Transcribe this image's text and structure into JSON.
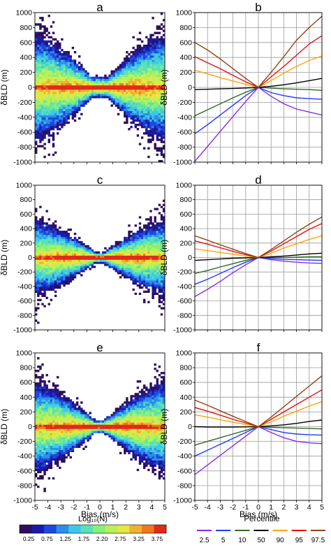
{
  "panel_letters": [
    "a",
    "b",
    "c",
    "d",
    "e",
    "f"
  ],
  "chart_data": [
    {
      "type": "heatmap",
      "panel": "a",
      "xlabel": "",
      "ylabel": "δBLD (m)",
      "xlim": [
        -5,
        5
      ],
      "ylim": [
        -1000,
        1000
      ],
      "x_ticks": [],
      "y_ticks": [
        1000,
        800,
        600,
        400,
        200,
        0,
        -200,
        -400,
        -600,
        -800,
        -1000
      ],
      "spread_at_edge": 900,
      "center_width": 0.6
    },
    {
      "type": "line",
      "panel": "b",
      "xlabel": "",
      "ylabel": "δBLD (m)",
      "xlim": [
        -5,
        5
      ],
      "ylim": [
        -1000,
        1000
      ],
      "grid": true,
      "x_ticks": [],
      "y_ticks": [
        1000,
        800,
        600,
        400,
        200,
        0,
        -200,
        -400,
        -600,
        -800,
        -1000
      ],
      "x": [
        -5,
        -4,
        -3,
        -2,
        -1,
        0,
        1,
        2,
        3,
        4,
        5
      ],
      "series": [
        {
          "color": "#8a2be2",
          "values": [
            -990,
            -790,
            -590,
            -390,
            -190,
            0,
            -120,
            -220,
            -290,
            -330,
            -370
          ]
        },
        {
          "color": "#1e3cff",
          "values": [
            -620,
            -500,
            -370,
            -240,
            -110,
            0,
            -70,
            -110,
            -140,
            -150,
            -160
          ]
        },
        {
          "color": "#2e6b1e",
          "values": [
            -380,
            -300,
            -220,
            -140,
            -65,
            0,
            -10,
            -20,
            -25,
            -30,
            -40
          ]
        },
        {
          "color": "#000000",
          "values": [
            -30,
            -25,
            -20,
            -15,
            -8,
            0,
            15,
            35,
            60,
            90,
            120
          ]
        },
        {
          "color": "#ffa500",
          "values": [
            230,
            180,
            130,
            85,
            40,
            0,
            90,
            190,
            280,
            360,
            420
          ]
        },
        {
          "color": "#e01010",
          "values": [
            410,
            330,
            250,
            160,
            75,
            0,
            140,
            280,
            430,
            580,
            690
          ]
        },
        {
          "color": "#8b4513",
          "values": [
            600,
            500,
            380,
            250,
            120,
            0,
            200,
            410,
            630,
            800,
            950
          ]
        }
      ]
    },
    {
      "type": "heatmap",
      "panel": "c",
      "xlabel": "",
      "ylabel": "δBLD (m)",
      "xlim": [
        -5,
        5
      ],
      "ylim": [
        -1000,
        1000
      ],
      "x_ticks": [],
      "y_ticks": [
        1000,
        800,
        600,
        400,
        200,
        0,
        -200,
        -400,
        -600,
        -800,
        -1000
      ],
      "spread_at_edge": 640,
      "center_width": 0.3
    },
    {
      "type": "line",
      "panel": "d",
      "xlabel": "",
      "ylabel": "δBLD (m)",
      "xlim": [
        -5,
        5
      ],
      "ylim": [
        -1000,
        1000
      ],
      "grid": true,
      "x_ticks": [],
      "y_ticks": [
        1000,
        800,
        600,
        400,
        200,
        0,
        -200,
        -400,
        -600,
        -800,
        -1000
      ],
      "x": [
        -5,
        -4,
        -3,
        -2,
        -1,
        0,
        1,
        2,
        3,
        4,
        5
      ],
      "series": [
        {
          "color": "#8a2be2",
          "values": [
            -540,
            -440,
            -330,
            -210,
            -100,
            0,
            -30,
            -50,
            -65,
            -75,
            -80
          ]
        },
        {
          "color": "#1e3cff",
          "values": [
            -370,
            -300,
            -220,
            -140,
            -65,
            0,
            -15,
            -25,
            -30,
            -35,
            -40
          ]
        },
        {
          "color": "#2e6b1e",
          "values": [
            -220,
            -180,
            -130,
            -85,
            -40,
            0,
            0,
            0,
            5,
            10,
            10
          ]
        },
        {
          "color": "#000000",
          "values": [
            -40,
            -30,
            -20,
            -10,
            -5,
            0,
            10,
            20,
            35,
            50,
            60
          ]
        },
        {
          "color": "#ffa500",
          "values": [
            120,
            95,
            70,
            45,
            20,
            0,
            60,
            130,
            190,
            250,
            300
          ]
        },
        {
          "color": "#e01010",
          "values": [
            230,
            185,
            135,
            85,
            40,
            0,
            90,
            190,
            290,
            390,
            470
          ]
        },
        {
          "color": "#8b4513",
          "values": [
            300,
            240,
            175,
            115,
            55,
            0,
            110,
            230,
            350,
            460,
            560
          ]
        }
      ]
    },
    {
      "type": "heatmap",
      "panel": "e",
      "xlabel": "Bias (m/s)",
      "ylabel": "δBLD (m)",
      "xlim": [
        -5,
        5
      ],
      "ylim": [
        -1000,
        1000
      ],
      "x_ticks": [
        -5,
        -4,
        -3,
        -2,
        -1,
        0,
        1,
        2,
        3,
        4,
        5
      ],
      "y_ticks": [
        1000,
        800,
        600,
        400,
        200,
        0,
        -200,
        -400,
        -600,
        -800,
        -1000
      ],
      "spread_at_edge": 760,
      "center_width": 0.35
    },
    {
      "type": "line",
      "panel": "f",
      "xlabel": "Bias (m/s)",
      "ylabel": "δBLD (m)",
      "xlim": [
        -5,
        5
      ],
      "ylim": [
        -1000,
        1000
      ],
      "grid": true,
      "x_ticks": [
        -5,
        -4,
        -3,
        -2,
        -1,
        0,
        1,
        2,
        3,
        4,
        5
      ],
      "y_ticks": [
        1000,
        800,
        600,
        400,
        200,
        0,
        -200,
        -400,
        -600,
        -800,
        -1000
      ],
      "x": [
        -5,
        -4,
        -3,
        -2,
        -1,
        0,
        1,
        2,
        3,
        4,
        5
      ],
      "series": [
        {
          "color": "#8a2be2",
          "values": [
            -650,
            -520,
            -390,
            -260,
            -130,
            0,
            -80,
            -150,
            -200,
            -220,
            -230
          ]
        },
        {
          "color": "#1e3cff",
          "values": [
            -400,
            -320,
            -240,
            -160,
            -80,
            0,
            -40,
            -80,
            -100,
            -110,
            -115
          ]
        },
        {
          "color": "#2e6b1e",
          "values": [
            -250,
            -200,
            -150,
            -100,
            -50,
            0,
            -10,
            -15,
            -20,
            -25,
            -30
          ]
        },
        {
          "color": "#000000",
          "values": [
            0,
            -5,
            -5,
            -5,
            -3,
            0,
            10,
            25,
            45,
            70,
            90
          ]
        },
        {
          "color": "#ffa500",
          "values": [
            160,
            130,
            95,
            60,
            30,
            0,
            65,
            140,
            210,
            280,
            340
          ]
        },
        {
          "color": "#e01010",
          "values": [
            260,
            210,
            155,
            100,
            50,
            0,
            100,
            200,
            300,
            400,
            500
          ]
        },
        {
          "color": "#8b4513",
          "values": [
            360,
            290,
            215,
            140,
            70,
            0,
            130,
            270,
            410,
            550,
            690
          ]
        }
      ]
    }
  ],
  "colorbar": {
    "label": "Log₁₀(N)",
    "labels": [
      "0.25",
      "0.75",
      "1.25",
      "1.75",
      "2.20",
      "2.75",
      "3.25",
      "3.75"
    ],
    "colors": [
      "#2b0f5e",
      "#1b1ba8",
      "#1e46e0",
      "#2b8ee8",
      "#3cc7e8",
      "#58e0b8",
      "#86f07a",
      "#b9f05a",
      "#e8e640",
      "#f0b030",
      "#f07820",
      "#e02a1a"
    ]
  },
  "legend": {
    "title": "Percentile",
    "items": [
      {
        "label": "2.5",
        "color": "#8a2be2"
      },
      {
        "label": "5",
        "color": "#1e3cff"
      },
      {
        "label": "10",
        "color": "#2e6b1e"
      },
      {
        "label": "50",
        "color": "#000000"
      },
      {
        "label": "90",
        "color": "#ffa500"
      },
      {
        "label": "95",
        "color": "#e01010"
      },
      {
        "label": "97.5",
        "color": "#8b4513"
      }
    ]
  }
}
